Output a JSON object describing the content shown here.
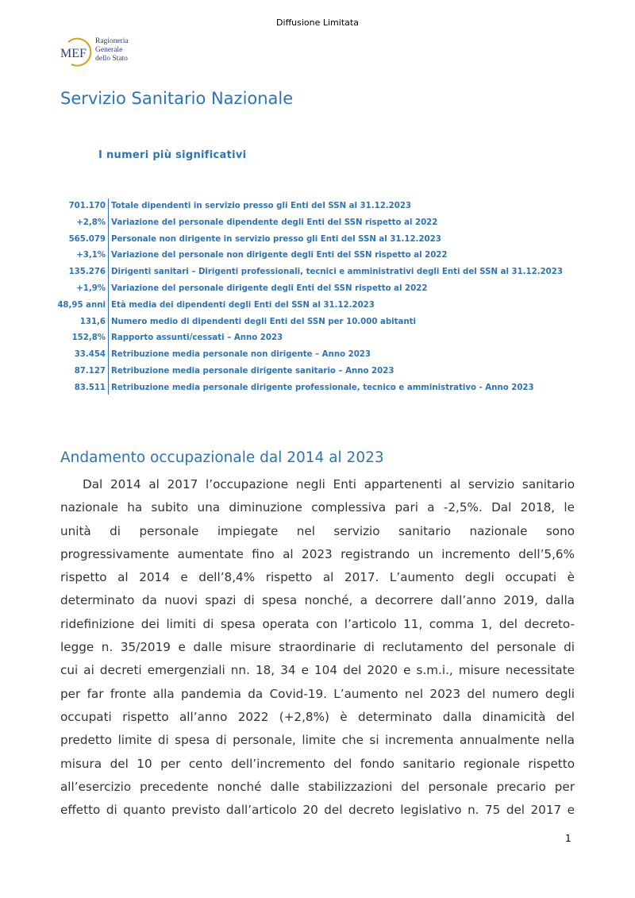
{
  "header": {
    "classification": "Diffusione Limitata"
  },
  "logo": {
    "mark": "MEF",
    "text_lines": [
      "Ragioneria",
      "Generale",
      "dello Stato"
    ]
  },
  "title": "Servizio Sanitario Nazionale",
  "subtitle": "I numeri più significativi",
  "key_figures": [
    {
      "value": "701.170",
      "label": "Totale dipendenti in servizio presso gli Enti del SSN al 31.12.2023"
    },
    {
      "value": "+2,8%",
      "label": "Variazione del personale dipendente degli Enti del SSN rispetto al 2022"
    },
    {
      "value": "565.079",
      "label": "Personale non dirigente in servizio presso gli Enti del SSN al 31.12.2023"
    },
    {
      "value": "+3,1%",
      "label": "Variazione del personale non dirigente degli Enti del SSN rispetto al 2022"
    },
    {
      "value": "135.276",
      "label": "Dirigenti sanitari – Dirigenti professionali, tecnici e amministrativi degli Enti del SSN al 31.12.2023"
    },
    {
      "value": "+1,9%",
      "label": "Variazione del personale dirigente degli Enti del SSN rispetto al 2022"
    },
    {
      "value": "48,95 anni",
      "label": "Età media dei dipendenti degli Enti del SSN al 31.12.2023"
    },
    {
      "value": "131,6",
      "label": "Numero medio di dipendenti degli Enti del SSN per 10.000 abitanti"
    },
    {
      "value": "152,8%",
      "label": "Rapporto assunti/cessati – Anno 2023"
    },
    {
      "value": "33.454",
      "label": "Retribuzione media personale non dirigente – Anno 2023"
    },
    {
      "value": "87.127",
      "label": "Retribuzione media personale dirigente sanitario – Anno 2023"
    },
    {
      "value": "83.511",
      "label": "Retribuzione media personale dirigente professionale, tecnico e amministrativo - Anno 2023"
    }
  ],
  "section": {
    "heading": "Andamento occupazionale dal 2014 al 2023",
    "lines": [
      "Dal 2014 al 2017 l’occupazione negli Enti appartenenti al servizio sanitario",
      "nazionale ha subito una diminuzione complessiva pari a -2,5%. Dal 2018, le",
      "unità di personale impiegate nel servizio sanitario nazionale sono",
      "progressivamente aumentate fino al 2023 registrando un incremento dell’5,6%",
      "rispetto al 2014 e dell’8,4% rispetto al 2017. L’aumento degli occupati è",
      "determinato da nuovi spazi di spesa nonché, a decorrere dall’anno 2019, dalla",
      "ridefinizione dei limiti di spesa operata con l’articolo 11, comma 1, del decreto-",
      "legge n. 35/2019 e dalle misure straordinarie di reclutamento del personale di",
      "cui ai decreti emergenziali nn. 18, 34 e 104 del 2020 e s.m.i., misure necessitate",
      "per far fronte alla pandemia da Covid-19. L’aumento nel 2023 del numero degli",
      "occupati rispetto all’anno 2022 (+2,8%) è determinato dalla dinamicità del",
      "predetto limite di spesa di personale, limite che si incrementa annualmente nella",
      "misura del 10 per cento dell’incremento del fondo sanitario regionale rispetto",
      "all’esercizio precedente nonché dalle stabilizzazioni del personale precario per",
      "effetto di quanto previsto dall’articolo 20 del decreto legislativo n. 75 del 2017 e"
    ]
  },
  "footer": {
    "page_number": "1"
  },
  "colors": {
    "accent": "#2e74b5",
    "logo_gold": "#d4a017",
    "logo_navy": "#2a3b7c"
  }
}
